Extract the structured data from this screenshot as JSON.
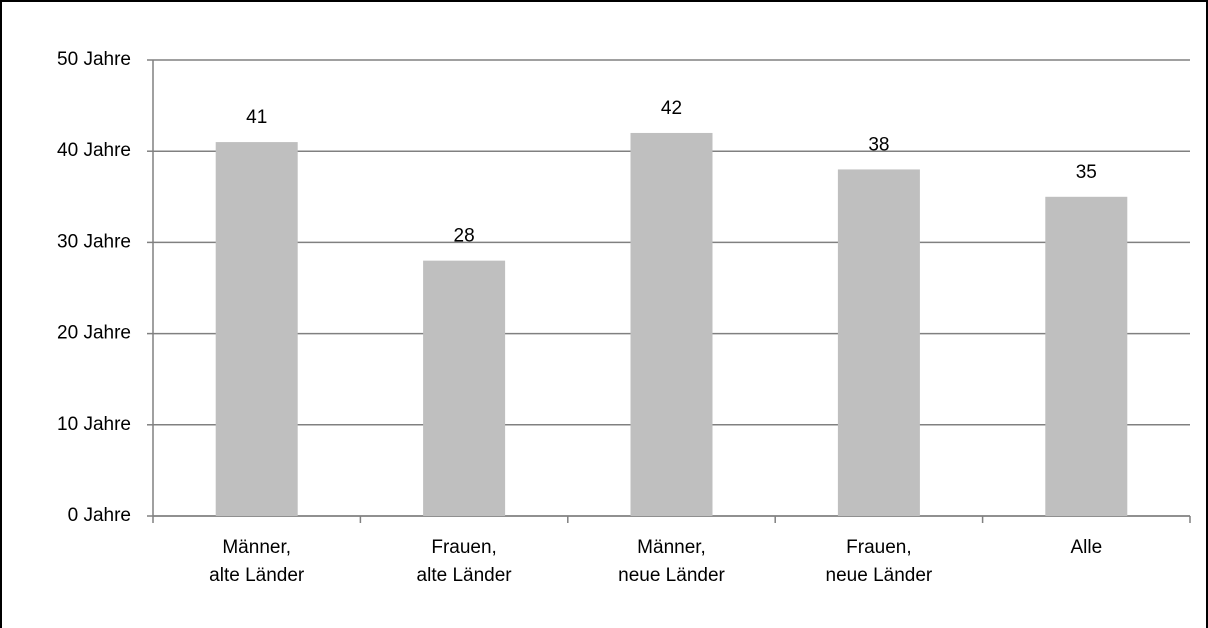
{
  "chart_data": {
    "type": "bar",
    "categories": [
      [
        "Männer,",
        "alte Länder"
      ],
      [
        "Frauen,",
        "alte Länder"
      ],
      [
        "Männer,",
        "neue Länder"
      ],
      [
        "Frauen,",
        "neue Länder"
      ],
      [
        "Alle"
      ]
    ],
    "values": [
      41,
      28,
      42,
      38,
      35
    ],
    "color": "#bfbfbf",
    "ylim": [
      0,
      50
    ],
    "yticks": [
      {
        "value": 0,
        "label": "0 Jahre"
      },
      {
        "value": 10,
        "label": "10 Jahre"
      },
      {
        "value": 20,
        "label": "20 Jahre"
      },
      {
        "value": 30,
        "label": "30 Jahre"
      },
      {
        "value": 40,
        "label": "40 Jahre"
      },
      {
        "value": 50,
        "label": "50 Jahre"
      }
    ],
    "grid": true
  }
}
